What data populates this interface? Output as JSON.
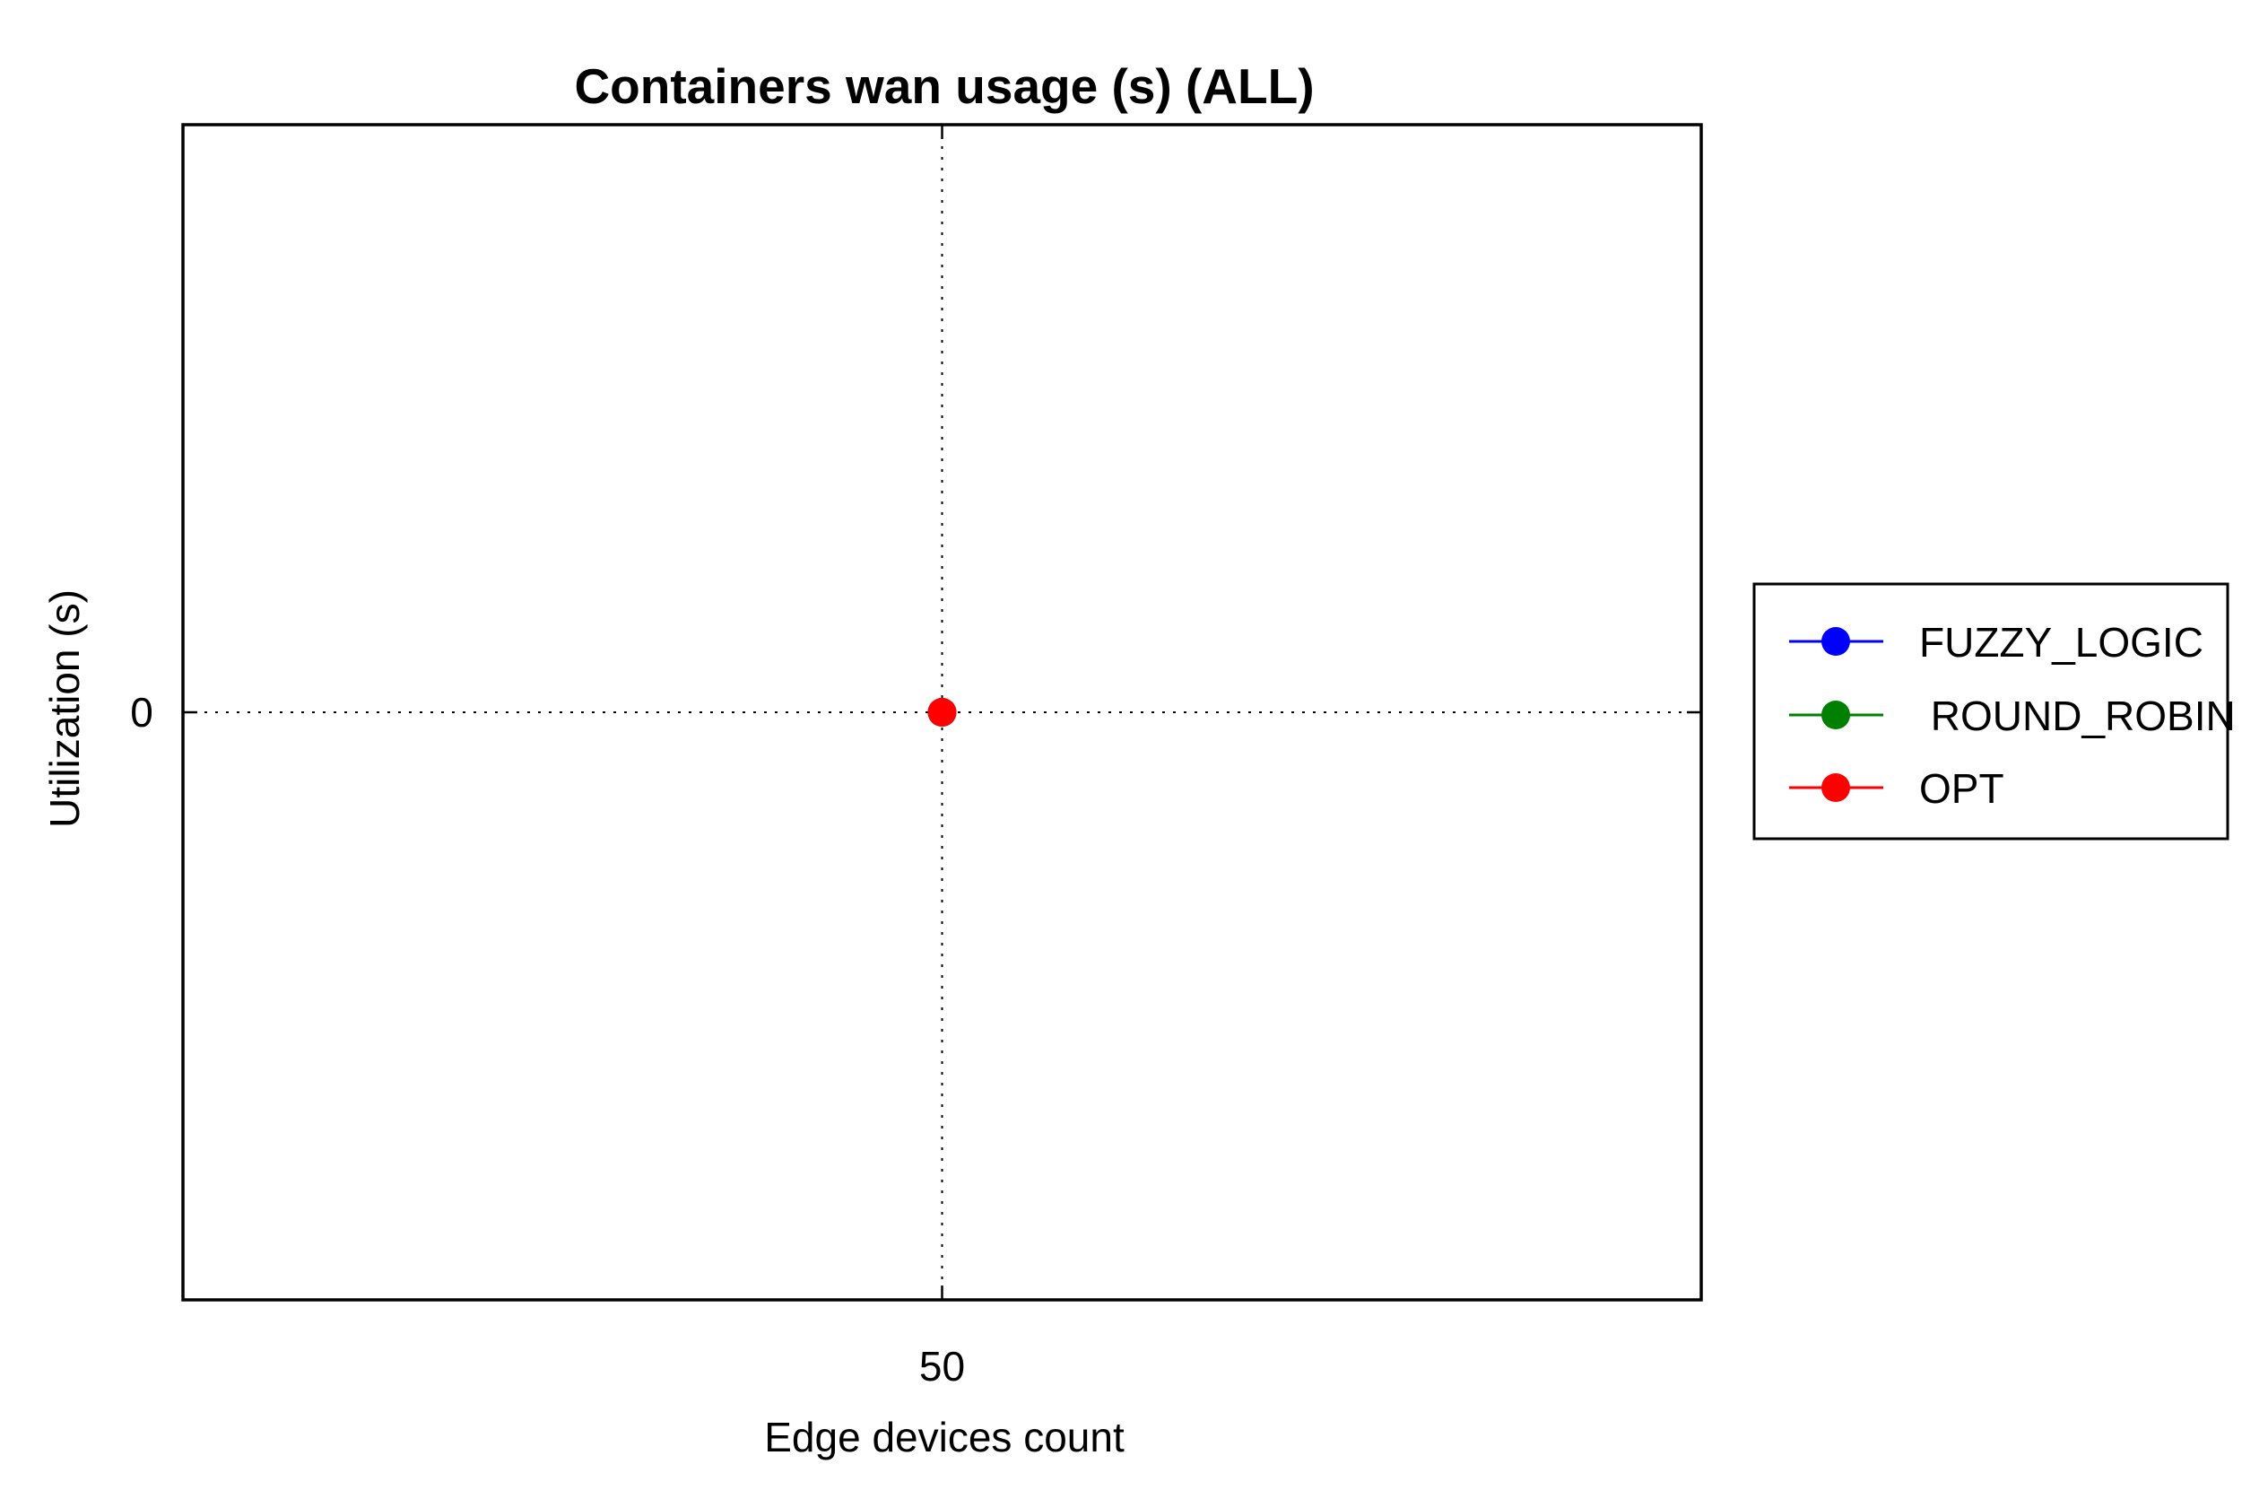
{
  "chart_data": {
    "type": "line",
    "title": "Containers wan usage (s) (ALL)",
    "xlabel": "Edge devices count",
    "ylabel": "Utilization (s)",
    "x": [
      50
    ],
    "x_ticks": [
      50
    ],
    "y_ticks": [
      0
    ],
    "xlim": [
      0,
      100
    ],
    "ylim": [
      -1,
      1
    ],
    "grid": true,
    "legend_position": "outside-right",
    "series": [
      {
        "name": "FUZZY_LOGIC",
        "color": "#0000ff",
        "marker": "circle",
        "values": [
          0
        ]
      },
      {
        "name": " ROUND_ROBIN",
        "color": "#008000",
        "marker": "circle",
        "values": [
          0
        ]
      },
      {
        "name": "OPT",
        "color": "#ff0000",
        "marker": "circle",
        "values": [
          0
        ]
      }
    ]
  }
}
